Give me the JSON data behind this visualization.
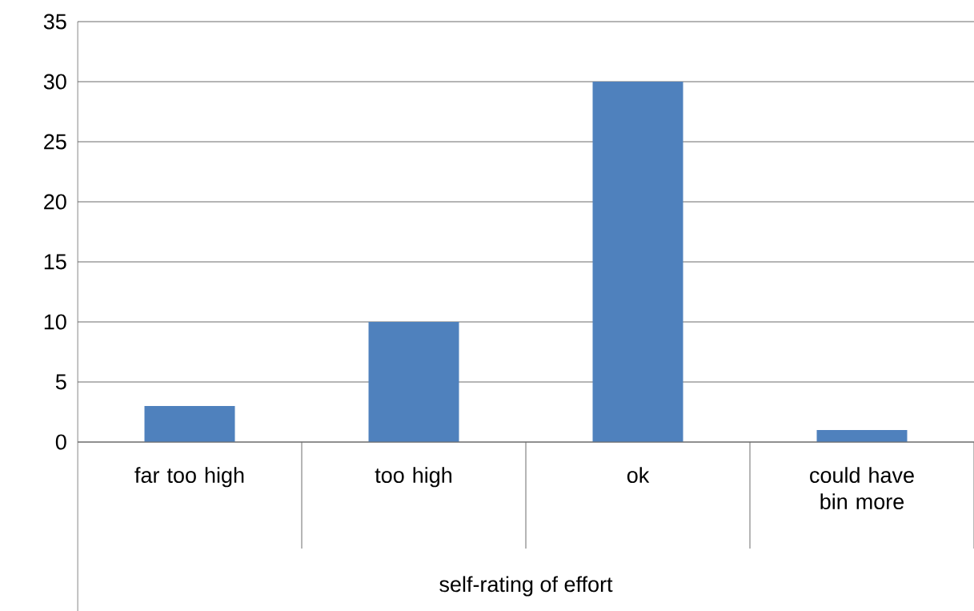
{
  "chart_data": {
    "type": "bar",
    "xlabel": "self-rating of effort",
    "categories": [
      "far too high",
      "too high",
      "ok",
      "could have bin more"
    ],
    "values": [
      3,
      10,
      30,
      1
    ],
    "color": "#4f81bd",
    "ylim": [
      0,
      35
    ],
    "yticks": [
      0,
      5,
      10,
      15,
      20,
      25,
      30,
      35
    ],
    "grid": "y"
  }
}
